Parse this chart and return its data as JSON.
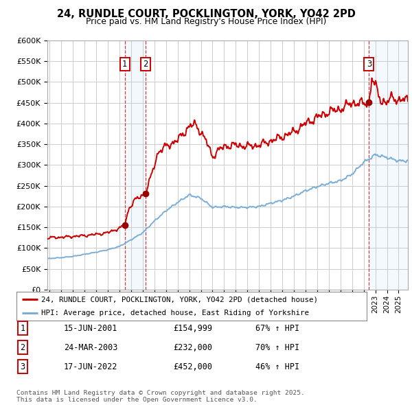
{
  "title": "24, RUNDLE COURT, POCKLINGTON, YORK, YO42 2PD",
  "subtitle": "Price paid vs. HM Land Registry's House Price Index (HPI)",
  "red_line_color": "#cc0000",
  "blue_line_color": "#7aaed6",
  "background_color": "#ffffff",
  "grid_color": "#cccccc",
  "plot_bg_color": "#ffffff",
  "ylim": [
    0,
    600000
  ],
  "yticks": [
    0,
    50000,
    100000,
    150000,
    200000,
    250000,
    300000,
    350000,
    400000,
    450000,
    500000,
    550000,
    600000
  ],
  "xlim_start": 1994.8,
  "xlim_end": 2025.8,
  "xticks": [
    1995,
    1996,
    1997,
    1998,
    1999,
    2000,
    2001,
    2002,
    2003,
    2004,
    2005,
    2006,
    2007,
    2008,
    2009,
    2010,
    2011,
    2012,
    2013,
    2014,
    2015,
    2016,
    2017,
    2018,
    2019,
    2020,
    2021,
    2022,
    2023,
    2024,
    2025
  ],
  "sales": [
    {
      "num": 1,
      "date": "15-JUN-2001",
      "year": 2001.46,
      "price": 154999,
      "hpi_change": "67% ↑ HPI"
    },
    {
      "num": 2,
      "date": "24-MAR-2003",
      "year": 2003.23,
      "price": 232000,
      "hpi_change": "70% ↑ HPI"
    },
    {
      "num": 3,
      "date": "17-JUN-2022",
      "year": 2022.46,
      "price": 452000,
      "hpi_change": "46% ↑ HPI"
    }
  ],
  "legend_line1": "24, RUNDLE COURT, POCKLINGTON, YORK, YO42 2PD (detached house)",
  "legend_line2": "HPI: Average price, detached house, East Riding of Yorkshire",
  "footer": "Contains HM Land Registry data © Crown copyright and database right 2025.\nThis data is licensed under the Open Government Licence v3.0.",
  "blue_control_years": [
    1994.8,
    1995,
    1996,
    1997,
    1998,
    1999,
    2000,
    2001,
    2002,
    2003,
    2004,
    2005,
    2006,
    2007,
    2008,
    2009,
    2010,
    2011,
    2012,
    2013,
    2014,
    2015,
    2016,
    2017,
    2018,
    2019,
    2020,
    2021,
    2022,
    2022.5,
    2023,
    2024,
    2025,
    2025.8
  ],
  "blue_control_vals": [
    74000,
    75000,
    77000,
    80000,
    85000,
    90000,
    96000,
    104000,
    120000,
    137000,
    165000,
    190000,
    210000,
    228000,
    220000,
    198000,
    200000,
    198000,
    198000,
    200000,
    208000,
    215000,
    225000,
    238000,
    248000,
    256000,
    262000,
    278000,
    307000,
    315000,
    325000,
    318000,
    310000,
    310000
  ],
  "red_control_years": [
    1994.8,
    1995,
    1996,
    1997,
    1998,
    1999,
    2000,
    2001.0,
    2001.46,
    2001.8,
    2002.3,
    2003.23,
    2003.8,
    2004.3,
    2005,
    2006,
    2007,
    2007.5,
    2008,
    2008.5,
    2009,
    2009.5,
    2010,
    2011,
    2012,
    2013,
    2014,
    2015,
    2016,
    2017,
    2018,
    2019,
    2020,
    2021,
    2022.0,
    2022.46,
    2022.7,
    2023,
    2023.5,
    2024,
    2024.5,
    2025,
    2025.8
  ],
  "red_control_vals": [
    124000,
    125000,
    126000,
    128000,
    130000,
    133000,
    137000,
    148000,
    154999,
    195000,
    215000,
    232000,
    280000,
    330000,
    345000,
    360000,
    393000,
    398000,
    380000,
    355000,
    320000,
    335000,
    345000,
    348000,
    345000,
    348000,
    358000,
    368000,
    380000,
    400000,
    415000,
    428000,
    435000,
    450000,
    448000,
    452000,
    510000,
    490000,
    455000,
    450000,
    465000,
    455000,
    458000
  ]
}
